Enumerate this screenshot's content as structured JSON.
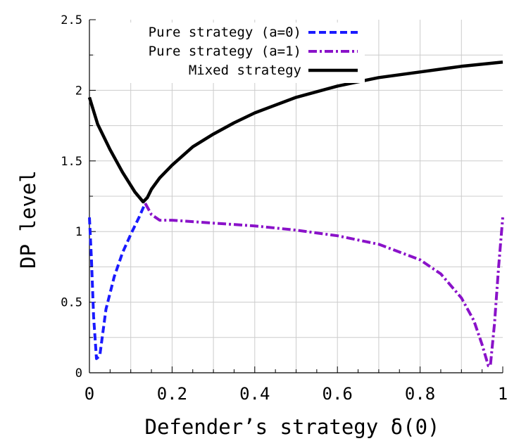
{
  "chart_data": {
    "type": "line",
    "xlabel": "Defender’s strategy δ(0)",
    "ylabel": "DP level",
    "xlim": [
      0,
      1
    ],
    "ylim": [
      0,
      2.5
    ],
    "x_ticks": [
      "0",
      "0.2",
      "0.4",
      "0.6",
      "0.8",
      "1"
    ],
    "x_tick_values": [
      0,
      0.2,
      0.4,
      0.6,
      0.8,
      1
    ],
    "y_ticks": [
      "0",
      "0.5",
      "1",
      "1.5",
      "2",
      "2.5"
    ],
    "y_tick_values": [
      0,
      0.5,
      1,
      1.5,
      2,
      2.5
    ],
    "grid": true,
    "legend_position": "top-left",
    "series": [
      {
        "name": "Pure strategy (a=0)",
        "color": "#1a1aff",
        "style": "dashed",
        "x": [
          0,
          0.005,
          0.01,
          0.017,
          0.025,
          0.04,
          0.06,
          0.08,
          0.1,
          0.12,
          0.135
        ],
        "y": [
          1.1,
          0.8,
          0.4,
          0.1,
          0.12,
          0.45,
          0.68,
          0.85,
          0.98,
          1.1,
          1.2
        ]
      },
      {
        "name": "Pure strategy (a=1)",
        "color": "#8a12c9",
        "style": "dashdot",
        "x": [
          0.135,
          0.15,
          0.17,
          0.2,
          0.3,
          0.4,
          0.5,
          0.6,
          0.7,
          0.8,
          0.85,
          0.9,
          0.93,
          0.95,
          0.965,
          0.97,
          0.98,
          0.99,
          1
        ],
        "y": [
          1.2,
          1.12,
          1.08,
          1.08,
          1.06,
          1.04,
          1.01,
          0.97,
          0.91,
          0.8,
          0.7,
          0.53,
          0.37,
          0.2,
          0.05,
          0.05,
          0.35,
          0.75,
          1.1
        ]
      },
      {
        "name": "Mixed strategy",
        "color": "#000000",
        "style": "solid",
        "x": [
          0,
          0.02,
          0.05,
          0.08,
          0.11,
          0.13,
          0.14,
          0.15,
          0.17,
          0.2,
          0.25,
          0.3,
          0.35,
          0.4,
          0.5,
          0.6,
          0.7,
          0.8,
          0.9,
          1
        ],
        "y": [
          1.95,
          1.76,
          1.58,
          1.42,
          1.28,
          1.21,
          1.24,
          1.3,
          1.38,
          1.47,
          1.6,
          1.69,
          1.77,
          1.84,
          1.95,
          2.03,
          2.09,
          2.13,
          2.17,
          2.2
        ]
      }
    ]
  }
}
